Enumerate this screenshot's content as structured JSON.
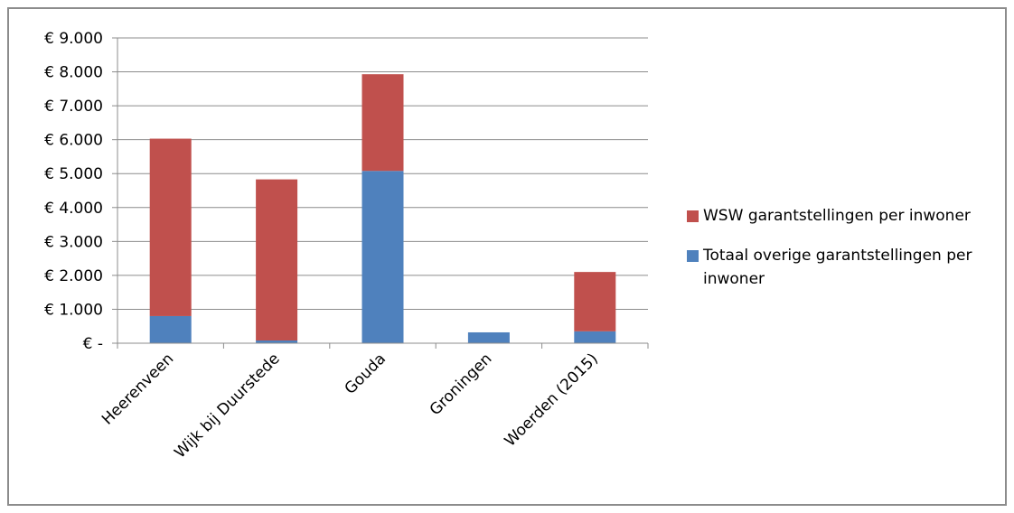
{
  "chart_data": {
    "type": "bar",
    "stacked": true,
    "categories": [
      "Heerenveen",
      "Wijk bij Duurstede",
      "Gouda",
      "Groningen",
      "Woerden (2015)"
    ],
    "series": [
      {
        "name": "Totaal overige garantstellingen per inwoner",
        "color": "#4f81bd",
        "values": [
          800,
          80,
          5080,
          320,
          350
        ]
      },
      {
        "name": "WSW garantstellingen per inwoner",
        "color": "#c0504d",
        "values": [
          5230,
          4750,
          2850,
          0,
          1750
        ]
      }
    ],
    "ylim": [
      0,
      9000
    ],
    "yticks": [
      0,
      1000,
      2000,
      3000,
      4000,
      5000,
      6000,
      7000,
      8000,
      9000
    ],
    "ytick_labels": [
      "€ -",
      "€ 1.000",
      "€ 2.000",
      "€ 3.000",
      "€ 4.000",
      "€ 5.000",
      "€ 6.000",
      "€ 7.000",
      "€ 8.000",
      "€ 9.000"
    ],
    "grid": true,
    "legend_position": "right",
    "legend_order": [
      "WSW garantstellingen per inwoner",
      "Totaal overige garantstellingen per inwoner"
    ],
    "title": "",
    "xlabel": "",
    "ylabel": ""
  }
}
